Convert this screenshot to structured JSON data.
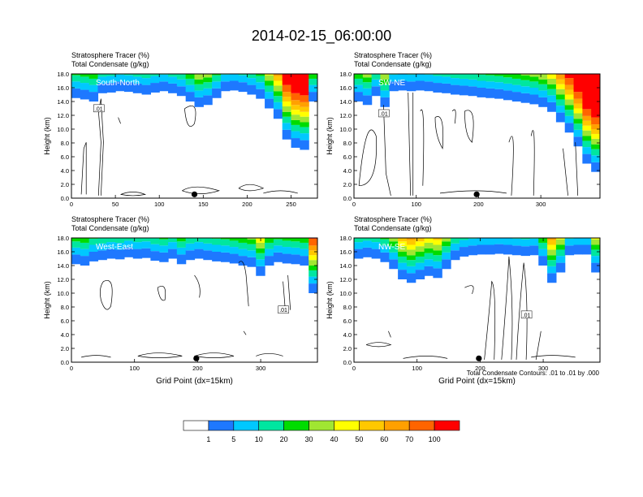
{
  "title": "2014-02-15_06:00:00",
  "colors": [
    "#ffffff",
    "#1e78ff",
    "#00c8ff",
    "#00e6a0",
    "#00dc00",
    "#a0e632",
    "#ffff00",
    "#ffc800",
    "#ffa000",
    "#ff6400",
    "#ff0000"
  ],
  "colorbar": {
    "labels": [
      "1",
      "5",
      "10",
      "20",
      "30",
      "40",
      "50",
      "60",
      "70",
      "100"
    ]
  },
  "contour_note": "Total Condensate Contours: .01 to .01 by .000",
  "chart_data": [
    {
      "type": "heatmap",
      "label": "South-North",
      "title_line1": "Stratosphere Tracer   (%)",
      "title_line2": "Total Condensate   (g/kg)",
      "ylabel": "Height (km)",
      "xlabel": "",
      "ylim": [
        0,
        18
      ],
      "xlim": [
        0,
        280
      ],
      "yticks": [
        "0.0",
        "2.0",
        "4.0",
        "6.0",
        "8.0",
        "10.0",
        "12.0",
        "14.0",
        "16.0",
        "18.0"
      ],
      "xticks": [
        "0",
        "50",
        "100",
        "150",
        "200",
        "250"
      ],
      "xtick_values": [
        0,
        50,
        100,
        150,
        200,
        250
      ],
      "tracer_base_km": [
        14.5,
        14.3,
        14.0,
        15.2,
        15.3,
        15.5,
        15.4,
        15.2,
        15.0,
        15.3,
        15.5,
        15.2,
        14.8,
        14.0,
        13.2,
        13.5,
        14.5,
        15.5,
        15.6,
        15.4,
        15.0,
        14.4,
        13.0,
        11.5,
        8.5,
        7.3,
        7.0,
        14.0
      ],
      "contour_label": ".01",
      "marker_x": 140
    },
    {
      "type": "heatmap",
      "label": "SW-NE",
      "title_line1": "Stratosphere Tracer   (%)",
      "title_line2": "Total Condensate   (g/kg)",
      "ylabel": "Height (km)",
      "xlabel": "",
      "ylim": [
        0,
        18
      ],
      "xlim": [
        0,
        395
      ],
      "yticks": [
        "0.0",
        "2.0",
        "4.0",
        "6.0",
        "8.0",
        "10.0",
        "12.0",
        "14.0",
        "16.0",
        "18.0"
      ],
      "xticks": [
        "0",
        "100",
        "200",
        "300"
      ],
      "xtick_values": [
        0,
        100,
        200,
        300
      ],
      "tracer_base_km": [
        14.0,
        13.5,
        14.8,
        13.2,
        15.5,
        15.6,
        15.5,
        15.6,
        15.5,
        15.3,
        15.2,
        15.0,
        14.9,
        14.8,
        14.6,
        14.5,
        14.4,
        14.2,
        14.0,
        13.8,
        13.6,
        13.2,
        12.5,
        11.0,
        9.5,
        7.5,
        5.0,
        3.8
      ],
      "contour_label": ".01",
      "marker_x": 197
    },
    {
      "type": "heatmap",
      "label": "West-East",
      "title_line1": "Stratosphere Tracer   (%)",
      "title_line2": "Total Condensate   (g/kg)",
      "ylabel": "Height (km)",
      "xlabel": "Grid Point (dx=15km)",
      "ylim": [
        0,
        18
      ],
      "xlim": [
        0,
        390
      ],
      "yticks": [
        "0.0",
        "2.0",
        "4.0",
        "6.0",
        "8.0",
        "10.0",
        "12.0",
        "14.0",
        "16.0",
        "18.0"
      ],
      "xticks": [
        "0",
        "100",
        "200",
        "300"
      ],
      "xtick_values": [
        0,
        100,
        200,
        300
      ],
      "tracer_base_km": [
        14.2,
        14.0,
        14.6,
        14.8,
        15.0,
        14.9,
        15.2,
        15.0,
        15.1,
        14.7,
        14.5,
        15.0,
        14.2,
        14.8,
        15.0,
        14.8,
        14.6,
        14.5,
        14.3,
        14.0,
        13.8,
        12.5,
        14.0,
        14.5,
        14.3,
        14.2,
        14.0,
        10.0
      ],
      "contour_label": ".01",
      "marker_x": 198
    },
    {
      "type": "heatmap",
      "label": "NW-SE",
      "title_line1": "Stratosphere Tracer   (%)",
      "title_line2": "Total Condensate   (g/kg)",
      "ylabel": "Height (km)",
      "xlabel": "Grid Point (dx=15km)",
      "ylim": [
        0,
        18
      ],
      "xlim": [
        0,
        390
      ],
      "yticks": [
        "0.0",
        "2.0",
        "4.0",
        "6.0",
        "8.0",
        "10.0",
        "12.0",
        "14.0",
        "16.0",
        "18.0"
      ],
      "xticks": [
        "0",
        "100",
        "200",
        "300"
      ],
      "xtick_values": [
        0,
        100,
        200,
        300
      ],
      "tracer_base_km": [
        15.0,
        15.2,
        15.0,
        14.5,
        13.5,
        12.0,
        11.5,
        12.0,
        12.5,
        12.2,
        13.5,
        14.8,
        15.3,
        15.5,
        15.6,
        15.6,
        15.7,
        15.6,
        15.5,
        15.4,
        15.5,
        14.0,
        11.5,
        13.0,
        15.5,
        15.6,
        15.6,
        13.0
      ],
      "contour_label": ".01",
      "marker_x": 198
    }
  ]
}
